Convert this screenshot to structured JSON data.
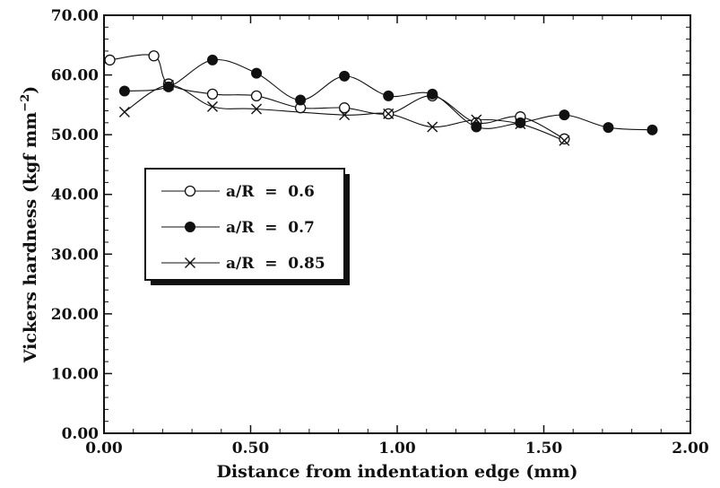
{
  "chart_data": {
    "type": "line",
    "xlabel": "Distance from indentation edge (mm)",
    "ylabel": "Vickers hardness (kgf mm",
    "ylabel_sup": "−2",
    "ylabel_close": ")",
    "xlim": [
      0,
      2
    ],
    "ylim": [
      0,
      70
    ],
    "x_ticks": [
      {
        "value": 0,
        "label": "0.00"
      },
      {
        "value": 0.5,
        "label": "0.50"
      },
      {
        "value": 1.0,
        "label": "1.00"
      },
      {
        "value": 1.5,
        "label": "1.50"
      },
      {
        "value": 2.0,
        "label": "2.00"
      }
    ],
    "y_ticks": [
      {
        "value": 0,
        "label": "0.00"
      },
      {
        "value": 10,
        "label": "10.00"
      },
      {
        "value": 20,
        "label": "20.00"
      },
      {
        "value": 30,
        "label": "30.00"
      },
      {
        "value": 40,
        "label": "40.00"
      },
      {
        "value": 50,
        "label": "50.00"
      },
      {
        "value": 60,
        "label": "60.00"
      },
      {
        "value": 70,
        "label": "70.00"
      }
    ],
    "legend_position": "left-middle",
    "series": [
      {
        "name": "a/R  =  0.6",
        "marker": "open-circle",
        "x": [
          0.02,
          0.17,
          0.22,
          0.37,
          0.52,
          0.67,
          0.82,
          0.97,
          1.12,
          1.27,
          1.42,
          1.57
        ],
        "y": [
          62.5,
          63.2,
          58.5,
          56.8,
          56.5,
          54.5,
          54.5,
          53.5,
          56.5,
          52.0,
          53.0,
          49.3
        ]
      },
      {
        "name": "a/R  =  0.7",
        "marker": "filled-circle",
        "x": [
          0.07,
          0.22,
          0.37,
          0.52,
          0.67,
          0.82,
          0.97,
          1.12,
          1.27,
          1.42,
          1.57,
          1.72,
          1.87
        ],
        "y": [
          57.3,
          58.0,
          62.5,
          60.3,
          55.8,
          59.8,
          56.5,
          56.8,
          51.3,
          52.0,
          53.3,
          51.2,
          50.8
        ]
      },
      {
        "name": "a/R  =  0.85",
        "marker": "cross",
        "x": [
          0.07,
          0.22,
          0.37,
          0.52,
          0.82,
          0.97,
          1.12,
          1.27,
          1.42,
          1.57
        ],
        "y": [
          53.8,
          58.3,
          54.7,
          54.3,
          53.3,
          53.5,
          51.3,
          52.5,
          51.8,
          49.0
        ]
      }
    ]
  }
}
